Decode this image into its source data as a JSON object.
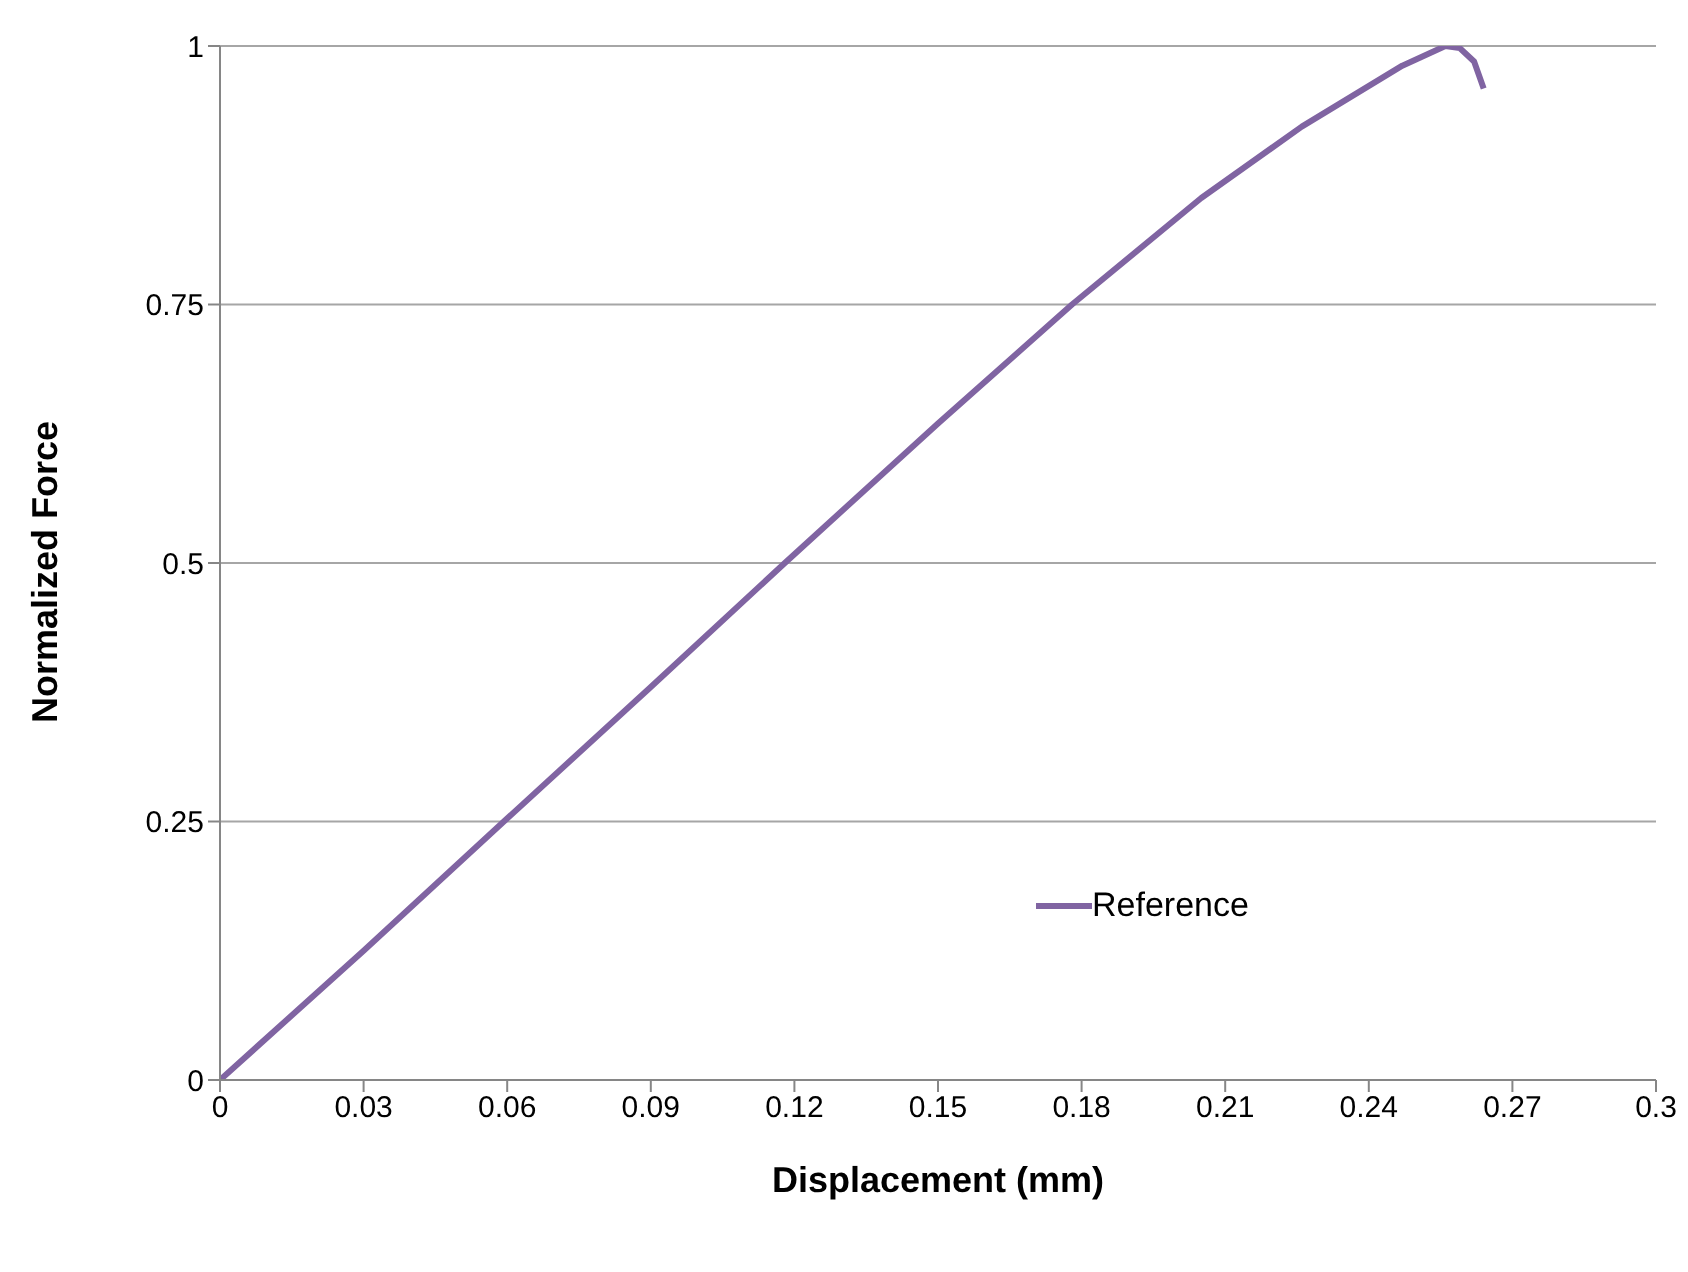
{
  "chart_data": {
    "type": "line",
    "xlabel": "Displacement (mm)",
    "ylabel": "Normalized Force",
    "x": [
      0,
      0.03,
      0.0593,
      0.09,
      0.118,
      0.15,
      0.178,
      0.205,
      0.226,
      0.247,
      0.256,
      0.259,
      0.262,
      0.264
    ],
    "series": [
      {
        "name": "Reference",
        "color": "#8064a2",
        "values": [
          0,
          0.125,
          0.25,
          0.38,
          0.5,
          0.635,
          0.75,
          0.853,
          0.922,
          0.981,
          1.0,
          0.998,
          0.985,
          0.959
        ]
      }
    ],
    "xlim": [
      0,
      0.3
    ],
    "xticks": [
      0,
      0.03,
      0.06,
      0.09,
      0.12,
      0.15,
      0.18,
      0.21,
      0.24,
      0.27,
      0.3
    ],
    "ylim": [
      0,
      1
    ],
    "yticks": [
      0,
      0.25,
      0.5,
      0.75,
      1
    ],
    "grid": "y",
    "legend": "right",
    "marker": "none",
    "line_style": "solid"
  }
}
